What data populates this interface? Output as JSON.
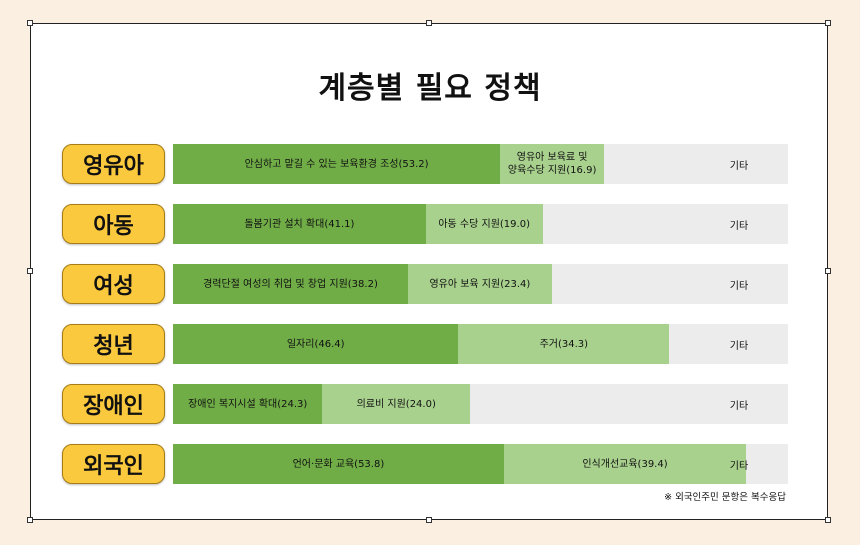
{
  "chart_data": {
    "type": "bar",
    "orientation": "horizontal",
    "stacked": true,
    "title": "계층별 필요 정책",
    "xlim": [
      0,
      100
    ],
    "colors": {
      "first": "#70ad47",
      "second": "#a9d18e",
      "other": "#ececec",
      "label_bg": "#fbc93d"
    },
    "other_label": "기타",
    "rows": [
      {
        "category": "영유아",
        "segments": [
          {
            "label": "안심하고 맡길 수 있는 보육환경 조성(53.2)",
            "value": 53.2
          },
          {
            "label": "영유아 보육료 및\n양육수당 지원(16.9)",
            "value": 16.9
          }
        ]
      },
      {
        "category": "아동",
        "segments": [
          {
            "label": "돌봄기관 설치 확대(41.1)",
            "value": 41.1
          },
          {
            "label": "아동 수당 지원(19.0)",
            "value": 19.0
          }
        ]
      },
      {
        "category": "여성",
        "segments": [
          {
            "label": "경력단절 여성의 취업 및 창업 지원(38.2)",
            "value": 38.2
          },
          {
            "label": "영유아 보육 지원(23.4)",
            "value": 23.4
          }
        ]
      },
      {
        "category": "청년",
        "segments": [
          {
            "label": "일자리(46.4)",
            "value": 46.4
          },
          {
            "label": "주거(34.3)",
            "value": 34.3
          }
        ]
      },
      {
        "category": "장애인",
        "segments": [
          {
            "label": "장애인 복지시설 확대(24.3)",
            "value": 24.3
          },
          {
            "label": "의료비 지원(24.0)",
            "value": 24.0
          }
        ]
      },
      {
        "category": "외국인",
        "segments": [
          {
            "label": "언어·문화 교육(53.8)",
            "value": 53.8
          },
          {
            "label": "인식개선교육(39.4)",
            "value": 39.4
          }
        ]
      }
    ],
    "footnote": "※ 외국인주민 문항은 복수응답"
  }
}
